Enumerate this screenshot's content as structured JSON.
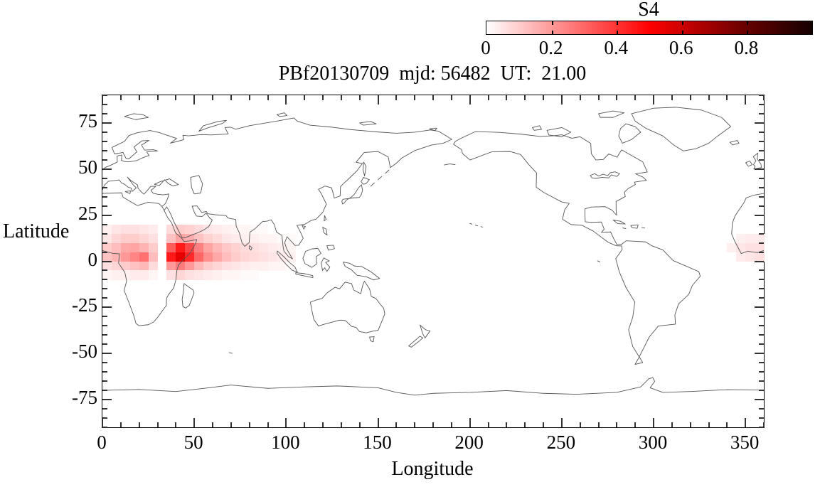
{
  "chart_data": {
    "type": "heatmap",
    "title": "PBf20130709  mjd: 56482  UT:  21.00",
    "xlabel": "Longitude",
    "ylabel": "Latitude",
    "xlim": [
      0,
      360
    ],
    "ylim": [
      -90,
      90
    ],
    "grid": false,
    "x_major_ticks": [
      0,
      50,
      100,
      150,
      200,
      250,
      300,
      350
    ],
    "x_tick_labels": [
      "0",
      "50",
      "100",
      "150",
      "200",
      "250",
      "300",
      "350"
    ],
    "x_minor_step": 10,
    "y_major_ticks": [
      75,
      50,
      25,
      0,
      -25,
      -50,
      -75
    ],
    "y_tick_labels": [
      "75",
      "50",
      "25",
      "0",
      "-25",
      "-50",
      "-75"
    ],
    "y_minor_step": 5,
    "basemap": "world-coastlines-0-360",
    "colorbar": {
      "title": "S4",
      "position": "top-right",
      "range": [
        0,
        1
      ],
      "tick_values": [
        0,
        0.2,
        0.4,
        0.6,
        0.8
      ],
      "tick_labels": [
        "0",
        "0.2",
        "0.4",
        "0.6",
        "0.8"
      ],
      "gradient_stops": [
        [
          0,
          "#ffffff"
        ],
        [
          0.2,
          "#ff9999"
        ],
        [
          0.4,
          "#ff3333"
        ],
        [
          0.5,
          "#ff0000"
        ],
        [
          0.6,
          "#cc0000"
        ],
        [
          0.8,
          "#660000"
        ],
        [
          1,
          "#140000"
        ]
      ]
    },
    "heatmap": {
      "value_name": "S4",
      "cell_size_deg": 5,
      "cells": [
        [
          0,
          15,
          0.03
        ],
        [
          5,
          15,
          0.05
        ],
        [
          10,
          15,
          0.06
        ],
        [
          15,
          15,
          0.06
        ],
        [
          20,
          15,
          0.05
        ],
        [
          25,
          15,
          0.04
        ],
        [
          35,
          15,
          0.07
        ],
        [
          40,
          15,
          0.1
        ],
        [
          45,
          15,
          0.09
        ],
        [
          50,
          15,
          0.07
        ],
        [
          55,
          15,
          0.05
        ],
        [
          60,
          15,
          0.04
        ],
        [
          65,
          15,
          0.03
        ],
        [
          70,
          15,
          0.02
        ],
        [
          75,
          15,
          0.02
        ],
        [
          80,
          15,
          0.01
        ],
        [
          85,
          15,
          0.01
        ],
        [
          0,
          10,
          0.05
        ],
        [
          5,
          10,
          0.08
        ],
        [
          10,
          10,
          0.1
        ],
        [
          15,
          10,
          0.1
        ],
        [
          20,
          10,
          0.08
        ],
        [
          25,
          10,
          0.06
        ],
        [
          35,
          10,
          0.12
        ],
        [
          40,
          10,
          0.18
        ],
        [
          45,
          10,
          0.16
        ],
        [
          50,
          10,
          0.12
        ],
        [
          55,
          10,
          0.09
        ],
        [
          60,
          10,
          0.07
        ],
        [
          65,
          10,
          0.05
        ],
        [
          70,
          10,
          0.04
        ],
        [
          75,
          10,
          0.03
        ],
        [
          80,
          10,
          0.03
        ],
        [
          85,
          10,
          0.02
        ],
        [
          90,
          10,
          0.02
        ],
        [
          95,
          10,
          0.01
        ],
        [
          100,
          10,
          0.01
        ],
        [
          0,
          5,
          0.1
        ],
        [
          5,
          5,
          0.13
        ],
        [
          10,
          5,
          0.17
        ],
        [
          15,
          5,
          0.18
        ],
        [
          20,
          5,
          0.15
        ],
        [
          25,
          5,
          0.1
        ],
        [
          35,
          5,
          0.32
        ],
        [
          40,
          5,
          0.45
        ],
        [
          45,
          5,
          0.36
        ],
        [
          50,
          5,
          0.25
        ],
        [
          55,
          5,
          0.18
        ],
        [
          60,
          5,
          0.14
        ],
        [
          65,
          5,
          0.11
        ],
        [
          70,
          5,
          0.09
        ],
        [
          75,
          5,
          0.07
        ],
        [
          80,
          5,
          0.06
        ],
        [
          85,
          5,
          0.05
        ],
        [
          90,
          5,
          0.04
        ],
        [
          95,
          5,
          0.03
        ],
        [
          100,
          5,
          0.02
        ],
        [
          0,
          0,
          0.12
        ],
        [
          5,
          0,
          0.15
        ],
        [
          10,
          0,
          0.2
        ],
        [
          15,
          0,
          0.24
        ],
        [
          20,
          0,
          0.28
        ],
        [
          25,
          0,
          0.13
        ],
        [
          35,
          0,
          0.45
        ],
        [
          40,
          0,
          0.55
        ],
        [
          45,
          0,
          0.42
        ],
        [
          50,
          0,
          0.3
        ],
        [
          55,
          0,
          0.22
        ],
        [
          60,
          0,
          0.17
        ],
        [
          65,
          0,
          0.13
        ],
        [
          70,
          0,
          0.1
        ],
        [
          75,
          0,
          0.08
        ],
        [
          80,
          0,
          0.07
        ],
        [
          85,
          0,
          0.06
        ],
        [
          90,
          0,
          0.05
        ],
        [
          95,
          0,
          0.04
        ],
        [
          100,
          0,
          0.03
        ],
        [
          0,
          -5,
          0.06
        ],
        [
          5,
          -5,
          0.08
        ],
        [
          10,
          -5,
          0.1
        ],
        [
          15,
          -5,
          0.12
        ],
        [
          20,
          -5,
          0.14
        ],
        [
          25,
          -5,
          0.07
        ],
        [
          35,
          -5,
          0.2
        ],
        [
          40,
          -5,
          0.26
        ],
        [
          45,
          -5,
          0.2
        ],
        [
          50,
          -5,
          0.14
        ],
        [
          55,
          -5,
          0.1
        ],
        [
          60,
          -5,
          0.08
        ],
        [
          65,
          -5,
          0.06
        ],
        [
          70,
          -5,
          0.05
        ],
        [
          75,
          -5,
          0.04
        ],
        [
          80,
          -5,
          0.03
        ],
        [
          85,
          -5,
          0.03
        ],
        [
          90,
          -5,
          0.02
        ],
        [
          95,
          -5,
          0.02
        ],
        [
          100,
          -5,
          0.01
        ],
        [
          0,
          -10,
          0.02
        ],
        [
          5,
          -10,
          0.03
        ],
        [
          10,
          -10,
          0.03
        ],
        [
          15,
          -10,
          0.04
        ],
        [
          20,
          -10,
          0.04
        ],
        [
          25,
          -10,
          0.02
        ],
        [
          35,
          -10,
          0.06
        ],
        [
          40,
          -10,
          0.08
        ],
        [
          45,
          -10,
          0.06
        ],
        [
          50,
          -10,
          0.05
        ],
        [
          55,
          -10,
          0.04
        ],
        [
          60,
          -10,
          0.03
        ],
        [
          65,
          -10,
          0.02
        ],
        [
          70,
          -10,
          0.02
        ],
        [
          75,
          -10,
          0.01
        ],
        [
          80,
          -10,
          0.01
        ],
        [
          345,
          10,
          0.03
        ],
        [
          350,
          10,
          0.04
        ],
        [
          355,
          10,
          0.04
        ],
        [
          340,
          5,
          0.03
        ],
        [
          345,
          5,
          0.05
        ],
        [
          350,
          5,
          0.06
        ],
        [
          355,
          5,
          0.06
        ],
        [
          345,
          0,
          0.04
        ],
        [
          350,
          0,
          0.05
        ],
        [
          355,
          0,
          0.06
        ]
      ]
    }
  },
  "colors": {
    "frame": "#000000",
    "tick": "#333333",
    "coastline": "#555555",
    "background": "#ffffff",
    "text": "#000000"
  }
}
